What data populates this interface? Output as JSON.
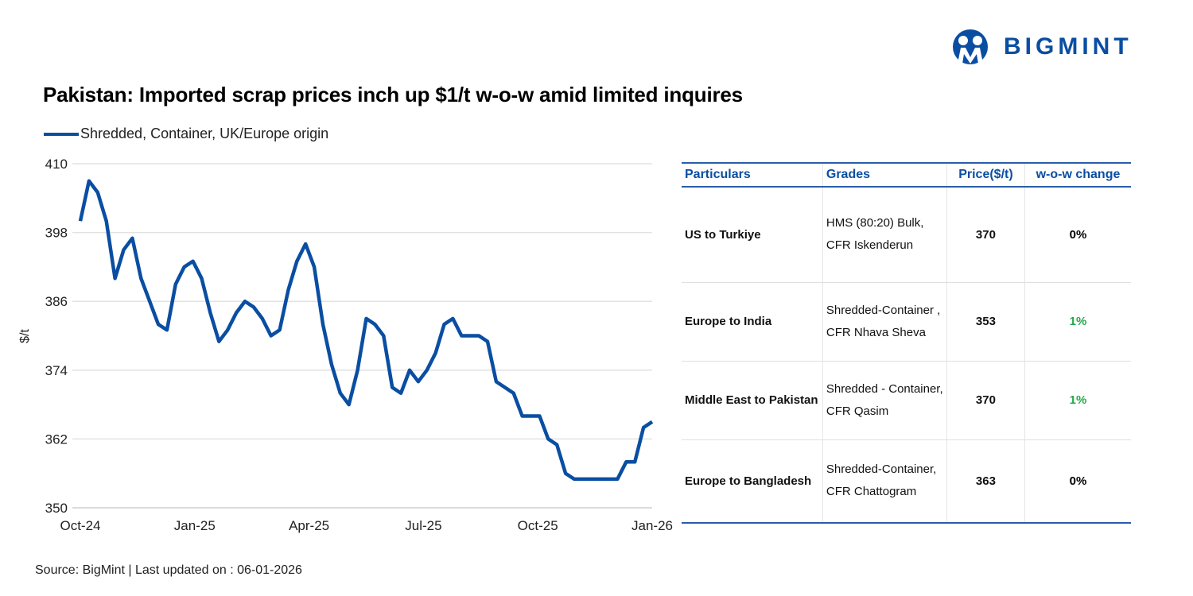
{
  "title": "Pakistan: Imported scrap prices inch up $1/t w-o-w amid limited inquires",
  "brand": {
    "name": "BIGMINT",
    "color": "#0a4ea2"
  },
  "source": "Source: BigMint | Last updated on : 06-01-2026",
  "chart_data": {
    "type": "line",
    "title": "Pakistan: Imported scrap prices inch up $1/t w-o-w amid limited inquires",
    "xlabel": "",
    "ylabel": "$/t",
    "ylim": [
      350,
      410
    ],
    "yticks": [
      350,
      362,
      374,
      386,
      398,
      410
    ],
    "xticks": [
      "Oct-24",
      "Jan-25",
      "Apr-25",
      "Jul-25",
      "Oct-25",
      "Jan-26"
    ],
    "grid": true,
    "legend": "top-left",
    "series": [
      {
        "name": "Shredded, Container, UK/Europe origin",
        "color": "#0a4ea2",
        "values": [
          400,
          407,
          405,
          400,
          390,
          395,
          397,
          390,
          386,
          382,
          381,
          389,
          392,
          393,
          390,
          384,
          379,
          381,
          384,
          386,
          385,
          383,
          380,
          381,
          388,
          393,
          396,
          392,
          382,
          375,
          370,
          368,
          374,
          383,
          382,
          380,
          371,
          370,
          374,
          372,
          374,
          377,
          382,
          383,
          380,
          380,
          380,
          379,
          372,
          371,
          370,
          366,
          366,
          366,
          362,
          361,
          356,
          355,
          355,
          355,
          355,
          355,
          355,
          358,
          358,
          364,
          365
        ]
      }
    ]
  },
  "table": {
    "headers": [
      "Particulars",
      "Grades",
      "Price($/t)",
      "w-o-w change"
    ],
    "rows": [
      {
        "particular": "US to Turkiye",
        "grade1": "HMS (80:20) Bulk,",
        "grade2": "CFR Iskenderun",
        "price": "370",
        "change": "0%",
        "change_color": "#000000"
      },
      {
        "particular": "Europe to India",
        "grade1": "Shredded-Container ,",
        "grade2": "CFR Nhava Sheva",
        "price": "353",
        "change": "1%",
        "change_color": "#22a84a"
      },
      {
        "particular": "Middle East to Pakistan",
        "grade1": "Shredded - Container,",
        "grade2": "CFR Qasim",
        "price": "370",
        "change": "1%",
        "change_color": "#22a84a"
      },
      {
        "particular": "Europe to Bangladesh",
        "grade1": "Shredded-Container,",
        "grade2": "CFR Chattogram",
        "price": "363",
        "change": "0%",
        "change_color": "#000000"
      }
    ]
  }
}
